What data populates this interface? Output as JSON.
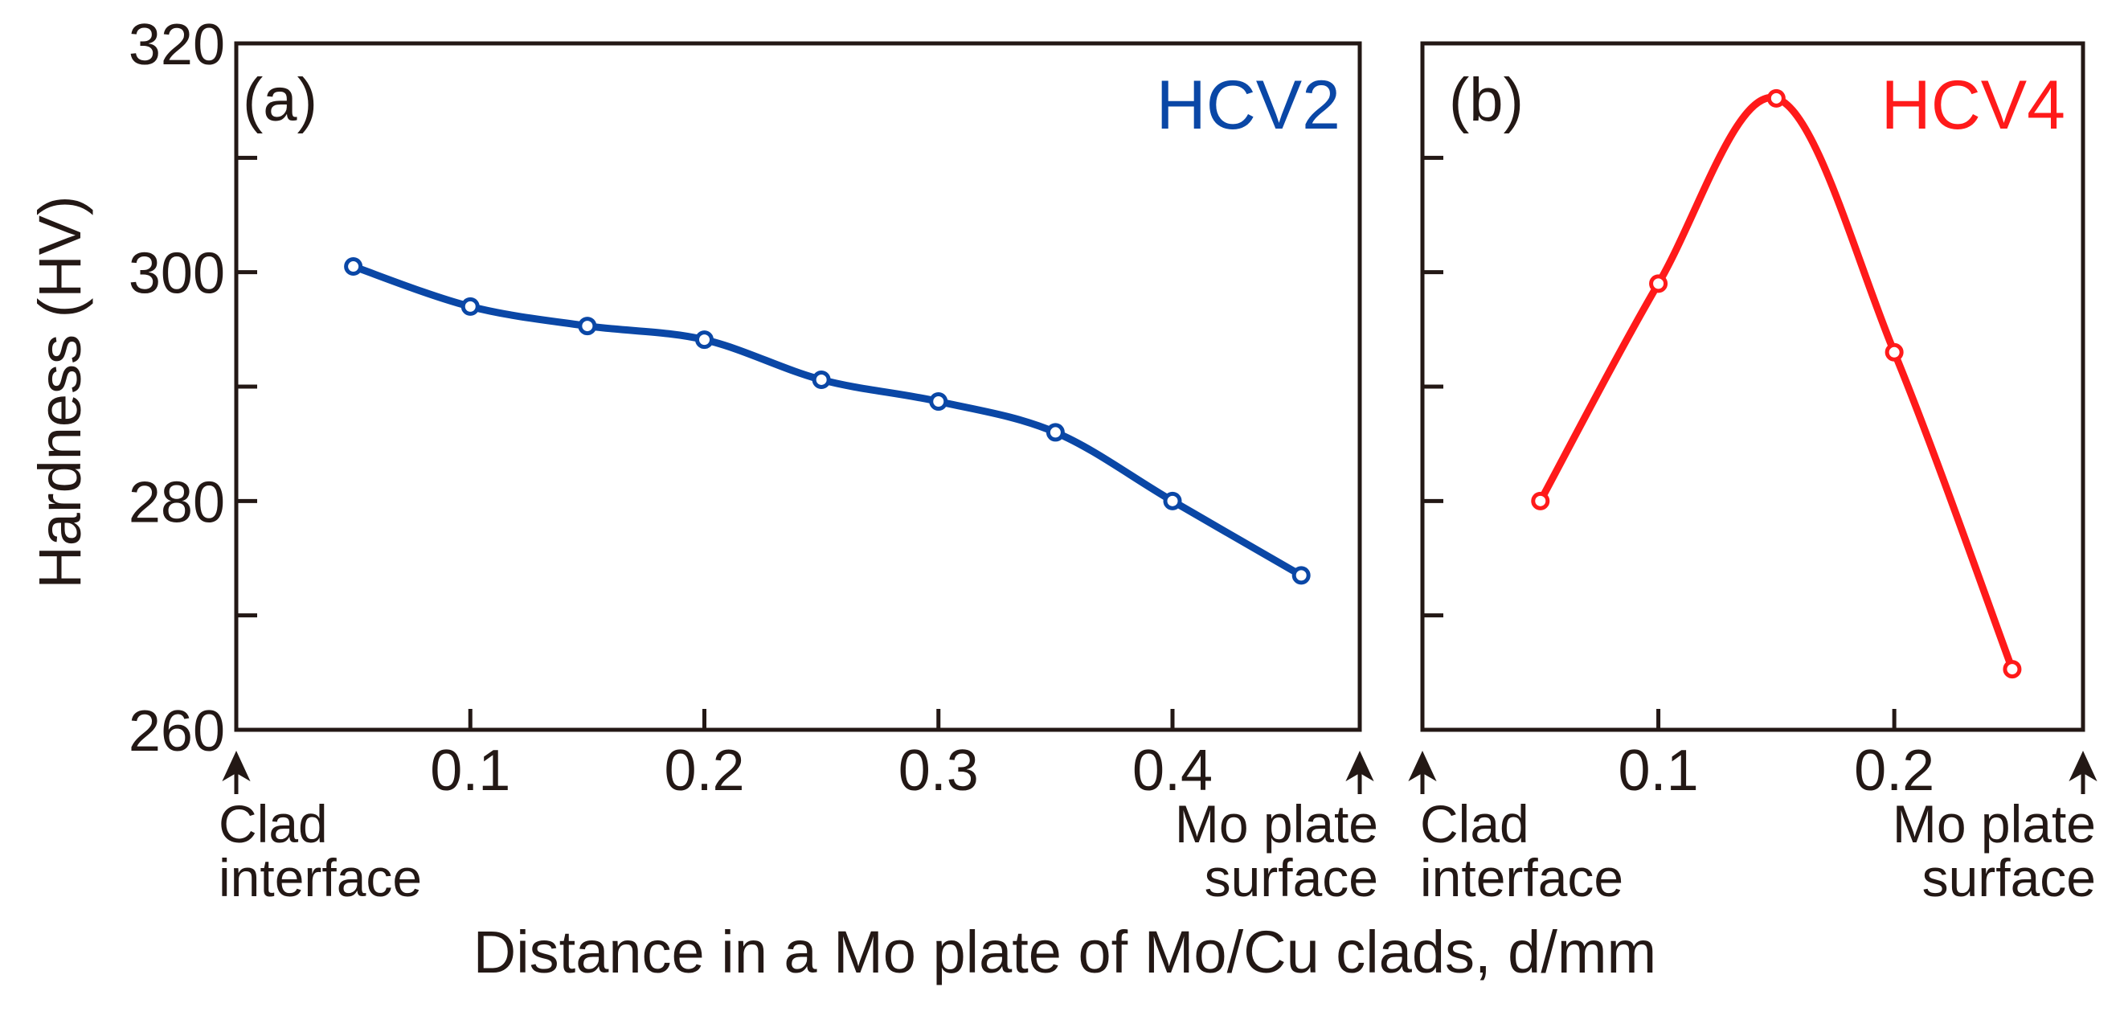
{
  "chart_data": [
    {
      "type": "line",
      "panel_label": "(a)",
      "series_label": "HCV2",
      "color": "#0a47a6",
      "x_ticks": [
        "0.1",
        "0.2",
        "0.3",
        "0.4"
      ],
      "x_tick_values": [
        0.1,
        0.2,
        0.3,
        0.4
      ],
      "xlim": [
        0.0,
        0.48
      ],
      "start_annotation": [
        "Clad",
        "interface"
      ],
      "end_annotation": [
        "Mo plate",
        "surface"
      ],
      "series": [
        {
          "name": "HCV2",
          "x": [
            0.05,
            0.1,
            0.15,
            0.2,
            0.25,
            0.3,
            0.35,
            0.4,
            0.455
          ],
          "y": [
            300.5,
            297.0,
            295.3,
            294.1,
            290.6,
            288.7,
            286.0,
            280.0,
            273.5
          ]
        }
      ],
      "ylim": [
        260,
        320
      ],
      "y_ticks": [
        "260",
        "280",
        "300",
        "320"
      ],
      "y_tick_values": [
        260,
        280,
        300,
        320
      ],
      "y_minor_ticks": [
        270,
        290,
        310
      ]
    },
    {
      "type": "line",
      "panel_label": "(b)",
      "series_label": "HCV4",
      "color": "#ff1a1a",
      "x_ticks": [
        "0.1",
        "0.2"
      ],
      "x_tick_values": [
        0.1,
        0.2
      ],
      "xlim": [
        0.0,
        0.28
      ],
      "start_annotation": [
        "Clad",
        "interface"
      ],
      "end_annotation": [
        "Mo plate",
        "surface"
      ],
      "series": [
        {
          "name": "HCV4",
          "x": [
            0.05,
            0.1,
            0.15,
            0.2,
            0.25
          ],
          "y": [
            280.0,
            299.0,
            315.2,
            293.0,
            265.3
          ]
        }
      ],
      "ylim": [
        260,
        320
      ],
      "y_minor_ticks": [
        270,
        280,
        290,
        300,
        310
      ]
    }
  ],
  "ylabel": "Hardness (HV)",
  "xlabel": "Distance in a Mo plate of Mo/Cu clads, d/mm"
}
